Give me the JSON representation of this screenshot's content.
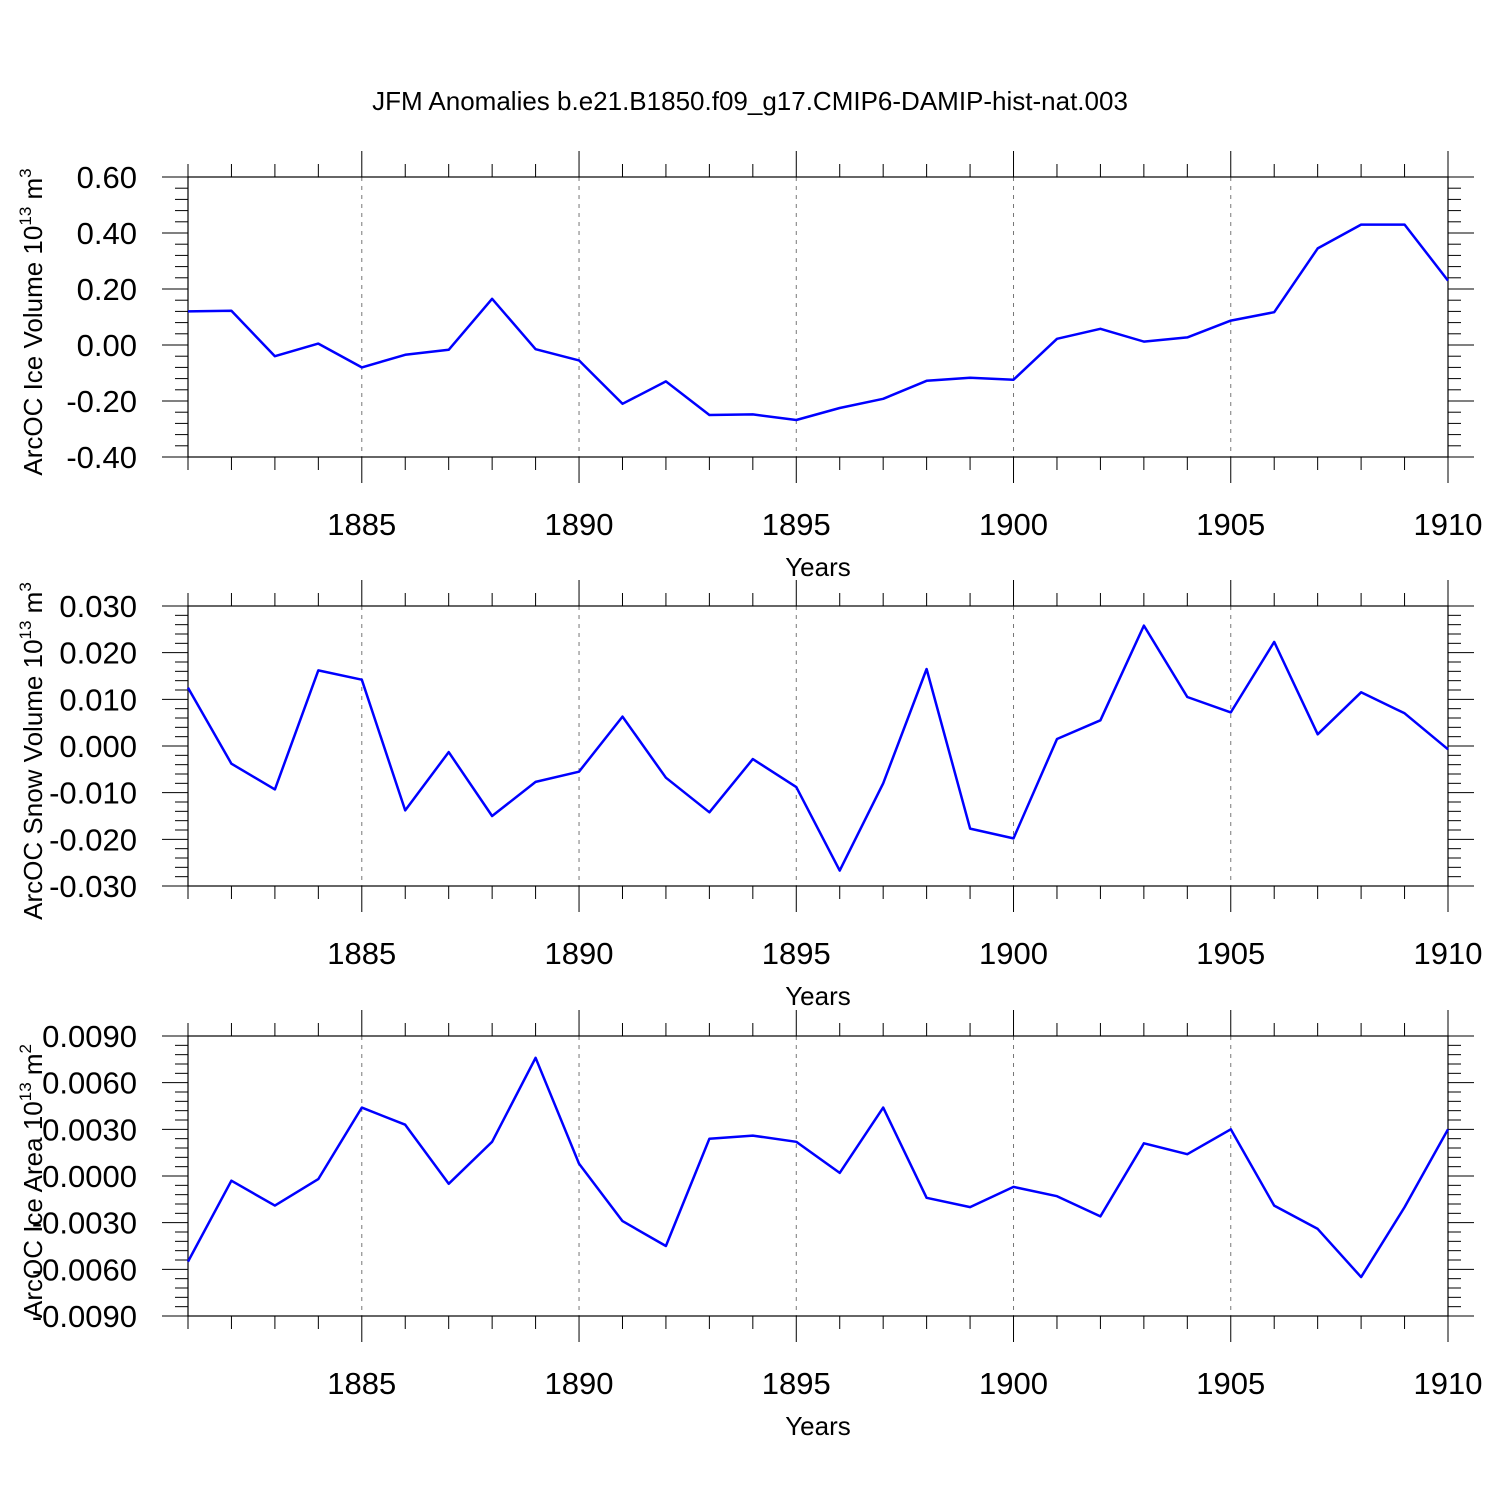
{
  "title": "JFM Anomalies b.e21.B1850.f09_g17.CMIP6-DAMIP-hist-nat.003",
  "line_color": "#0000ff",
  "chart_data": [
    {
      "type": "line",
      "ylabel": "ArcOC Ice Volume 10",
      "ylabel_exp": "13",
      "ylabel_unit": " m",
      "ylabel_unit_exp": "3",
      "xlabel": "Years",
      "xlim": [
        1881,
        1910
      ],
      "ylim": [
        -0.4,
        0.6
      ],
      "xticks": [
        1885,
        1890,
        1895,
        1900,
        1905,
        1910
      ],
      "xtick_labels": [
        "1885",
        "1890",
        "1895",
        "1900",
        "1905",
        "1910"
      ],
      "yticks": [
        -0.4,
        -0.2,
        0.0,
        0.2,
        0.4,
        0.6
      ],
      "ytick_labels": [
        "-0.40",
        "-0.20",
        "0.00",
        "0.20",
        "0.40",
        "0.60"
      ],
      "grid": "vertical dashed at major x ticks",
      "x": [
        1881,
        1882,
        1883,
        1884,
        1885,
        1886,
        1887,
        1888,
        1889,
        1890,
        1891,
        1892,
        1893,
        1894,
        1895,
        1896,
        1897,
        1898,
        1899,
        1900,
        1901,
        1902,
        1903,
        1904,
        1905,
        1906,
        1907,
        1908,
        1909,
        1910
      ],
      "values": [
        0.12,
        0.122,
        -0.04,
        0.005,
        -0.08,
        -0.035,
        -0.017,
        0.165,
        -0.015,
        -0.055,
        -0.21,
        -0.13,
        -0.25,
        -0.248,
        -0.268,
        -0.225,
        -0.192,
        -0.128,
        -0.117,
        -0.124,
        0.022,
        0.058,
        0.012,
        0.027,
        0.087,
        0.117,
        0.345,
        0.43,
        0.43,
        0.23
      ]
    },
    {
      "type": "line",
      "ylabel": "ArcOC Snow Volume 10",
      "ylabel_exp": "13",
      "ylabel_unit": " m",
      "ylabel_unit_exp": "3",
      "xlabel": "Years",
      "xlim": [
        1881,
        1910
      ],
      "ylim": [
        -0.03,
        0.03
      ],
      "xticks": [
        1885,
        1890,
        1895,
        1900,
        1905,
        1910
      ],
      "xtick_labels": [
        "1885",
        "1890",
        "1895",
        "1900",
        "1905",
        "1910"
      ],
      "yticks": [
        -0.03,
        -0.02,
        -0.01,
        0.0,
        0.01,
        0.02,
        0.03
      ],
      "ytick_labels": [
        "-0.030",
        "-0.020",
        "-0.010",
        "0.000",
        "0.010",
        "0.020",
        "0.030"
      ],
      "grid": "vertical dashed at major x ticks",
      "x": [
        1881,
        1882,
        1883,
        1884,
        1885,
        1886,
        1887,
        1888,
        1889,
        1890,
        1891,
        1892,
        1893,
        1894,
        1895,
        1896,
        1897,
        1898,
        1899,
        1900,
        1901,
        1902,
        1903,
        1904,
        1905,
        1906,
        1907,
        1908,
        1909,
        1910
      ],
      "values": [
        0.0125,
        -0.0038,
        -0.0093,
        0.0162,
        0.0142,
        -0.0138,
        -0.0013,
        -0.015,
        -0.0077,
        -0.0055,
        0.0063,
        -0.0068,
        -0.0142,
        -0.0028,
        -0.0088,
        -0.0267,
        -0.008,
        0.0165,
        -0.0177,
        -0.0198,
        0.0015,
        0.0055,
        0.0258,
        0.0105,
        0.0072,
        0.0223,
        0.0025,
        0.0115,
        0.007,
        -0.0007
      ]
    },
    {
      "type": "line",
      "ylabel": "ArcOC Ice Area 10",
      "ylabel_exp": "13",
      "ylabel_unit": " m",
      "ylabel_unit_exp": "2",
      "xlabel": "Years",
      "xlim": [
        1881,
        1910
      ],
      "ylim": [
        -0.009,
        0.009
      ],
      "xticks": [
        1885,
        1890,
        1895,
        1900,
        1905,
        1910
      ],
      "xtick_labels": [
        "1885",
        "1890",
        "1895",
        "1900",
        "1905",
        "1910"
      ],
      "yticks": [
        -0.009,
        -0.006,
        -0.003,
        0.0,
        0.003,
        0.006,
        0.009
      ],
      "ytick_labels": [
        "-0.0090",
        "-0.0060",
        "-0.0030",
        "0.0000",
        "0.0030",
        "0.0060",
        "0.0090"
      ],
      "grid": "vertical dashed at major x ticks",
      "x": [
        1881,
        1882,
        1883,
        1884,
        1885,
        1886,
        1887,
        1888,
        1889,
        1890,
        1891,
        1892,
        1893,
        1894,
        1895,
        1896,
        1897,
        1898,
        1899,
        1900,
        1901,
        1902,
        1903,
        1904,
        1905,
        1906,
        1907,
        1908,
        1909,
        1910
      ],
      "values": [
        -0.0055,
        -0.0003,
        -0.0019,
        -0.0002,
        0.0044,
        0.0033,
        -0.0005,
        0.0022,
        0.0076,
        0.0008,
        -0.0029,
        -0.0045,
        0.0024,
        0.0026,
        0.0022,
        0.0002,
        0.0044,
        -0.0014,
        -0.002,
        -0.0007,
        -0.0013,
        -0.0026,
        0.0021,
        0.0014,
        0.003,
        -0.0019,
        -0.0034,
        -0.0065,
        -0.002,
        0.003
      ]
    }
  ]
}
